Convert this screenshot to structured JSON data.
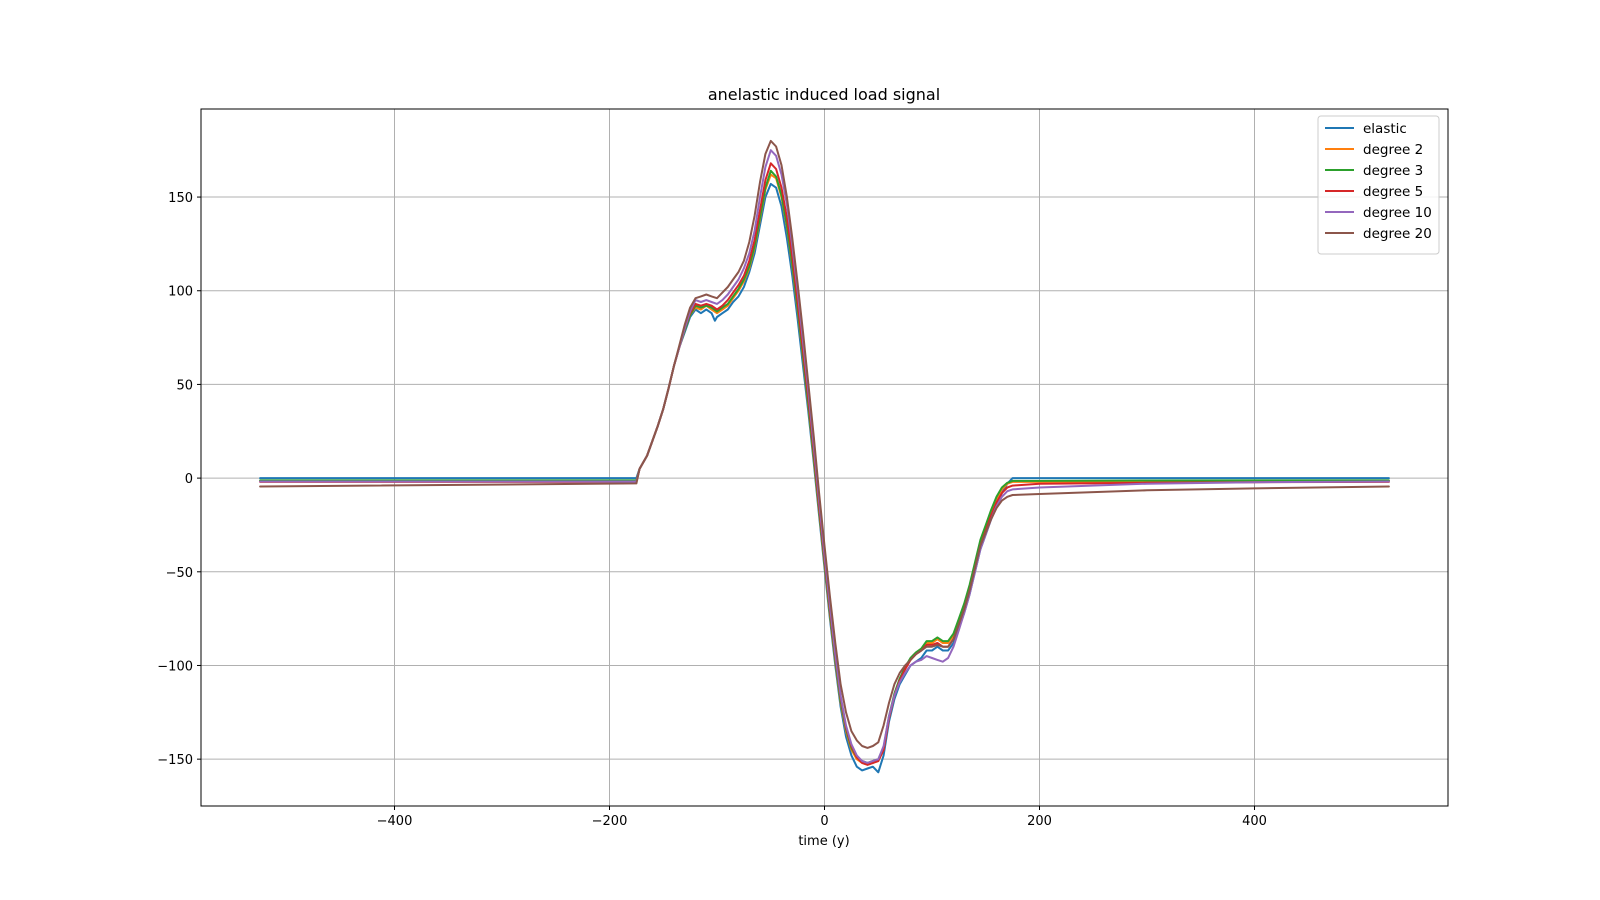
{
  "chart_data": {
    "type": "line",
    "title": "anelastic induced load signal",
    "xlabel": "time (y)",
    "ylabel": "",
    "xlim": [
      -580,
      580
    ],
    "ylim": [
      -175,
      197
    ],
    "xticks": [
      -400,
      -200,
      0,
      200,
      400
    ],
    "xtick_labels": [
      "−400",
      "−200",
      "0",
      "200",
      "400"
    ],
    "yticks": [
      -150,
      -100,
      -50,
      0,
      50,
      100,
      150
    ],
    "ytick_labels": [
      "−150",
      "−100",
      "−50",
      "0",
      "50",
      "100",
      "150"
    ],
    "grid": true,
    "legend_position": "top-right",
    "series": [
      {
        "name": "elastic",
        "color": "#1f77b4",
        "x": [
          -525,
          -175,
          -172,
          -165,
          -160,
          -155,
          -150,
          -145,
          -140,
          -135,
          -130,
          -125,
          -120,
          -115,
          -110,
          -105,
          -102,
          -100,
          -95,
          -90,
          -85,
          -80,
          -75,
          -70,
          -65,
          -60,
          -55,
          -50,
          -45,
          -40,
          -35,
          -30,
          -25,
          -20,
          -15,
          -10,
          -5,
          0,
          5,
          10,
          15,
          20,
          25,
          30,
          35,
          40,
          45,
          50,
          55,
          60,
          65,
          70,
          75,
          80,
          85,
          90,
          95,
          100,
          105,
          110,
          115,
          120,
          125,
          130,
          135,
          140,
          145,
          150,
          155,
          160,
          165,
          170,
          175,
          200,
          300,
          400,
          525
        ],
        "y": [
          0,
          0,
          5,
          12,
          20,
          28,
          37,
          48,
          60,
          70,
          78,
          86,
          90,
          88,
          90,
          88,
          84,
          86,
          88,
          90,
          94,
          97,
          102,
          110,
          120,
          135,
          150,
          157,
          155,
          145,
          128,
          108,
          85,
          60,
          35,
          8,
          -20,
          -48,
          -75,
          -100,
          -122,
          -138,
          -148,
          -154,
          -156,
          -155,
          -154,
          -157,
          -148,
          -130,
          -118,
          -110,
          -105,
          -100,
          -98,
          -96,
          -92,
          -92,
          -90,
          -92,
          -92,
          -88,
          -80,
          -72,
          -62,
          -50,
          -38,
          -30,
          -22,
          -15,
          -8,
          -3,
          0,
          0,
          0,
          0,
          0
        ]
      },
      {
        "name": "degree 2",
        "color": "#ff7f0e",
        "x": [
          -525,
          -175,
          -172,
          -165,
          -160,
          -155,
          -150,
          -145,
          -140,
          -135,
          -130,
          -125,
          -120,
          -115,
          -110,
          -105,
          -100,
          -95,
          -90,
          -85,
          -80,
          -75,
          -70,
          -65,
          -60,
          -55,
          -50,
          -45,
          -40,
          -35,
          -30,
          -25,
          -20,
          -15,
          -10,
          -5,
          0,
          5,
          10,
          15,
          20,
          25,
          30,
          35,
          40,
          45,
          50,
          55,
          60,
          65,
          70,
          75,
          80,
          85,
          90,
          95,
          100,
          105,
          110,
          115,
          120,
          125,
          130,
          135,
          140,
          145,
          150,
          155,
          160,
          165,
          170,
          175,
          200,
          300,
          400,
          525
        ],
        "y": [
          -1.5,
          -1.5,
          5,
          12,
          20,
          28,
          37,
          48,
          60,
          70,
          79,
          87,
          91,
          90,
          92,
          90,
          88,
          90,
          92,
          96,
          100,
          105,
          112,
          123,
          138,
          154,
          162,
          160,
          150,
          134,
          113,
          90,
          64,
          38,
          10,
          -18,
          -46,
          -73,
          -98,
          -120,
          -135,
          -145,
          -150,
          -152,
          -153,
          -152,
          -151,
          -145,
          -128,
          -116,
          -108,
          -102,
          -97,
          -94,
          -92,
          -88,
          -88,
          -86,
          -88,
          -88,
          -84,
          -76,
          -68,
          -58,
          -46,
          -34,
          -26,
          -18,
          -11,
          -6,
          -3,
          -2,
          -2,
          -1.8,
          -1.6,
          -1.5
        ]
      },
      {
        "name": "degree 3",
        "color": "#2ca02c",
        "x": [
          -525,
          -175,
          -172,
          -165,
          -160,
          -155,
          -150,
          -145,
          -140,
          -135,
          -130,
          -125,
          -120,
          -115,
          -110,
          -105,
          -100,
          -95,
          -90,
          -85,
          -80,
          -75,
          -70,
          -65,
          -60,
          -55,
          -50,
          -45,
          -40,
          -35,
          -30,
          -25,
          -20,
          -15,
          -10,
          -5,
          0,
          5,
          10,
          15,
          20,
          25,
          30,
          35,
          40,
          45,
          50,
          55,
          60,
          65,
          70,
          75,
          80,
          85,
          90,
          95,
          100,
          105,
          110,
          115,
          120,
          125,
          130,
          135,
          140,
          145,
          150,
          155,
          160,
          165,
          170,
          175,
          200,
          300,
          400,
          525
        ],
        "y": [
          -1.2,
          -1.2,
          5,
          12,
          20,
          28,
          37,
          48,
          60,
          70,
          79,
          87,
          92,
          91,
          92,
          91,
          89,
          91,
          93,
          97,
          101,
          106,
          113,
          124,
          139,
          155,
          164,
          161,
          151,
          135,
          114,
          91,
          65,
          39,
          11,
          -17,
          -45,
          -72,
          -97,
          -119,
          -134,
          -144,
          -149,
          -151,
          -152,
          -151,
          -150,
          -144,
          -127,
          -115,
          -107,
          -101,
          -96,
          -93,
          -91,
          -87,
          -87,
          -85,
          -87,
          -87,
          -83,
          -75,
          -67,
          -57,
          -45,
          -33,
          -25,
          -17,
          -10,
          -5,
          -2.5,
          -1.5,
          -1.5,
          -1.3,
          -1.2,
          -1.2
        ]
      },
      {
        "name": "degree 5",
        "color": "#d62728",
        "x": [
          -525,
          -175,
          -172,
          -165,
          -160,
          -155,
          -150,
          -145,
          -140,
          -135,
          -130,
          -125,
          -120,
          -115,
          -110,
          -105,
          -100,
          -95,
          -90,
          -85,
          -80,
          -75,
          -70,
          -65,
          -60,
          -55,
          -50,
          -45,
          -40,
          -35,
          -30,
          -25,
          -20,
          -15,
          -10,
          -5,
          0,
          5,
          10,
          15,
          20,
          25,
          30,
          35,
          40,
          45,
          50,
          55,
          60,
          65,
          70,
          75,
          80,
          85,
          90,
          95,
          100,
          105,
          110,
          115,
          120,
          125,
          130,
          135,
          140,
          145,
          150,
          155,
          160,
          165,
          170,
          175,
          200,
          300,
          400,
          525
        ],
        "y": [
          -2,
          -2,
          5,
          12,
          20,
          28,
          37,
          48,
          60,
          70,
          80,
          88,
          93,
          92,
          93,
          92,
          90,
          92,
          95,
          99,
          103,
          108,
          116,
          127,
          143,
          159,
          168,
          165,
          155,
          139,
          118,
          94,
          68,
          42,
          14,
          -15,
          -43,
          -70,
          -95,
          -117,
          -133,
          -143,
          -149,
          -152,
          -153,
          -152,
          -151,
          -145,
          -128,
          -116,
          -108,
          -102,
          -97,
          -94,
          -92,
          -89,
          -89,
          -88,
          -90,
          -90,
          -86,
          -78,
          -70,
          -60,
          -48,
          -36,
          -28,
          -20,
          -13,
          -8,
          -5,
          -4,
          -3,
          -2.5,
          -2.2,
          -2
        ]
      },
      {
        "name": "degree 10",
        "color": "#9467bd",
        "x": [
          -525,
          -175,
          -172,
          -165,
          -160,
          -155,
          -150,
          -145,
          -140,
          -135,
          -130,
          -125,
          -120,
          -115,
          -110,
          -105,
          -100,
          -95,
          -90,
          -85,
          -80,
          -75,
          -70,
          -65,
          -60,
          -55,
          -50,
          -45,
          -40,
          -35,
          -30,
          -25,
          -20,
          -15,
          -10,
          -5,
          0,
          5,
          10,
          15,
          20,
          25,
          30,
          35,
          40,
          45,
          50,
          55,
          60,
          65,
          70,
          75,
          80,
          85,
          90,
          95,
          100,
          105,
          110,
          115,
          120,
          125,
          130,
          135,
          140,
          145,
          150,
          155,
          160,
          165,
          170,
          175,
          200,
          300,
          400,
          525
        ],
        "y": [
          -1.8,
          -1.8,
          5,
          12,
          20,
          28,
          37,
          48,
          60,
          70,
          80,
          89,
          95,
          94,
          95,
          94,
          93,
          95,
          98,
          102,
          106,
          112,
          120,
          132,
          150,
          166,
          175,
          172,
          162,
          146,
          124,
          100,
          73,
          46,
          17,
          -12,
          -41,
          -68,
          -94,
          -116,
          -132,
          -142,
          -148,
          -151,
          -152,
          -151,
          -150,
          -143,
          -127,
          -116,
          -109,
          -104,
          -100,
          -98,
          -97,
          -95,
          -96,
          -97,
          -98,
          -96,
          -90,
          -81,
          -72,
          -62,
          -50,
          -38,
          -30,
          -22,
          -15,
          -10,
          -7,
          -6,
          -5,
          -3,
          -2.2,
          -1.8
        ]
      },
      {
        "name": "degree 20",
        "color": "#8c564b",
        "x": [
          -525,
          -175,
          -172,
          -165,
          -160,
          -155,
          -150,
          -145,
          -140,
          -135,
          -130,
          -125,
          -120,
          -115,
          -110,
          -105,
          -100,
          -95,
          -90,
          -85,
          -80,
          -75,
          -70,
          -65,
          -60,
          -55,
          -50,
          -45,
          -40,
          -35,
          -30,
          -25,
          -20,
          -15,
          -10,
          -5,
          0,
          5,
          10,
          15,
          20,
          25,
          30,
          35,
          40,
          45,
          50,
          55,
          60,
          65,
          70,
          75,
          80,
          85,
          90,
          95,
          100,
          105,
          110,
          115,
          120,
          125,
          130,
          135,
          140,
          145,
          150,
          155,
          160,
          165,
          170,
          175,
          200,
          300,
          400,
          525
        ],
        "y": [
          -4.5,
          -2.8,
          5,
          12,
          20,
          28,
          37,
          48,
          60,
          71,
          82,
          91,
          96,
          97,
          98,
          97,
          96,
          99,
          102,
          106,
          110,
          116,
          126,
          140,
          158,
          173,
          180,
          177,
          167,
          150,
          128,
          104,
          78,
          50,
          22,
          -8,
          -36,
          -63,
          -88,
          -110,
          -125,
          -135,
          -140,
          -143,
          -144,
          -143,
          -141,
          -132,
          -120,
          -110,
          -104,
          -100,
          -97,
          -94,
          -92,
          -90,
          -90,
          -89,
          -90,
          -90,
          -86,
          -78,
          -70,
          -60,
          -48,
          -36,
          -29,
          -22,
          -16,
          -12,
          -10,
          -9,
          -8.5,
          -6.5,
          -5.5,
          -4.5
        ]
      }
    ]
  }
}
